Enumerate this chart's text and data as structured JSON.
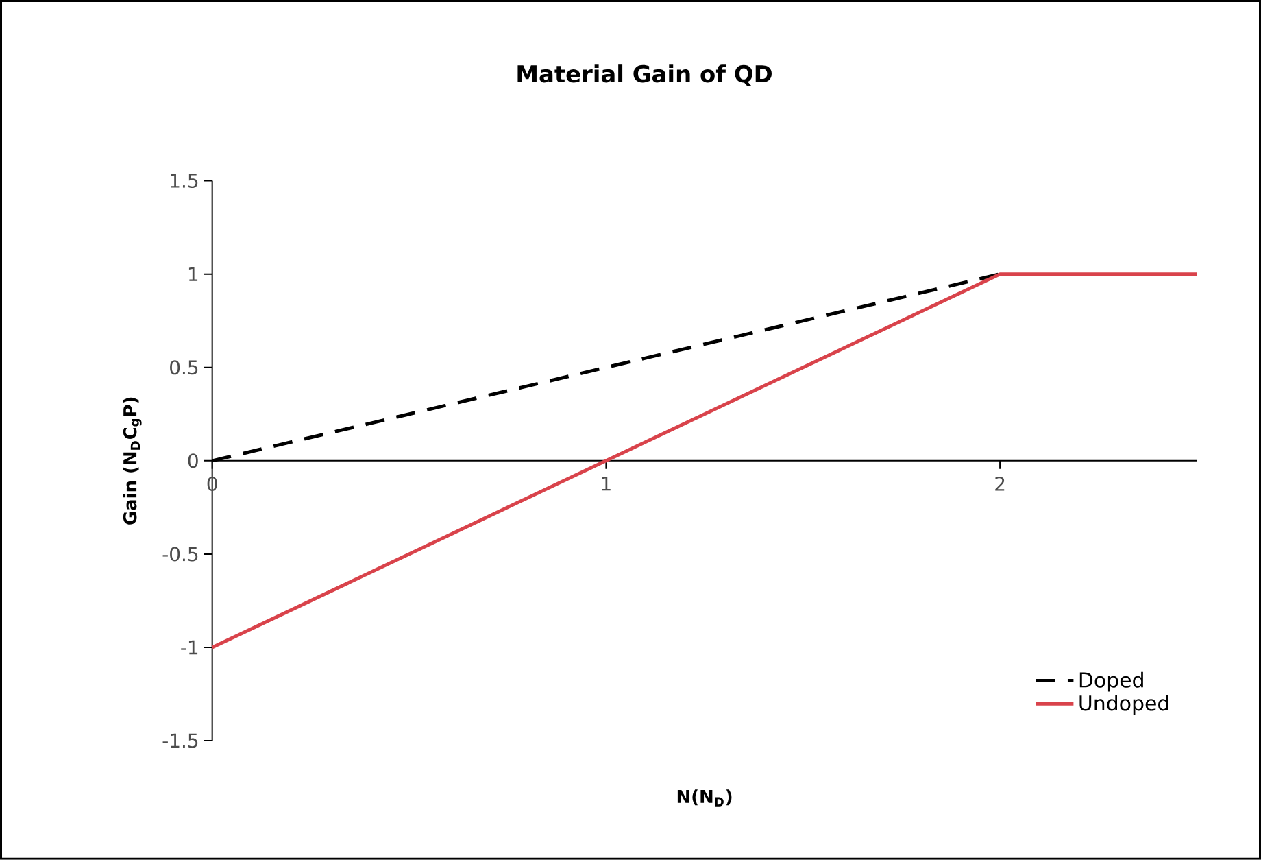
{
  "chart_data": {
    "type": "line",
    "title": "Material Gain of QD",
    "xlabel": "N(N$_{D}$)",
    "ylabel": "Gain (N$_{D}$C$_{g}$P)",
    "xlim": [
      0,
      2.5
    ],
    "xticks": [
      0,
      1,
      2
    ],
    "ylim": [
      -1.5,
      1.5
    ],
    "yticks": [
      -1.5,
      -1,
      -0.5,
      0,
      0.5,
      1,
      1.5
    ],
    "legend": "bottom right",
    "series": [
      {
        "name": "Doped",
        "color": "#000000",
        "line_style": "dashed",
        "x": [
          0,
          2
        ],
        "values": [
          0,
          1
        ]
      },
      {
        "name": "Undoped",
        "color": "#d9434b",
        "line_style": "solid",
        "x": [
          0,
          1,
          2,
          2.5
        ],
        "values": [
          -1,
          0,
          1,
          1
        ]
      }
    ]
  }
}
